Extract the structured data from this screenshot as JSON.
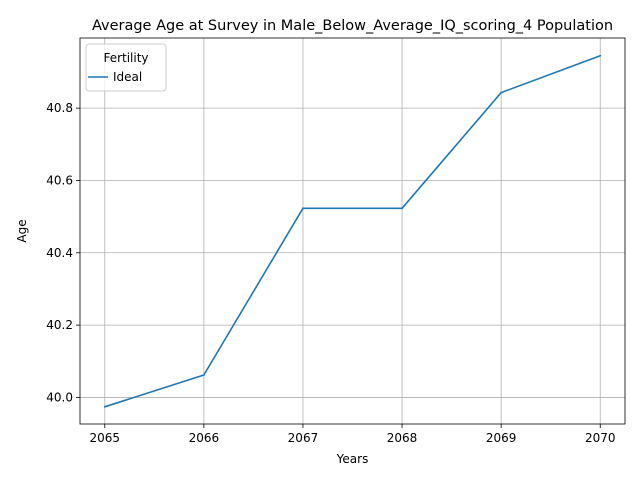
{
  "chart_data": {
    "type": "line",
    "title": "Average Age at Survey in Male_Below_Average_IQ_scoring_4 Population",
    "xlabel": "Years",
    "ylabel": "Age",
    "x": [
      2065,
      2066,
      2067,
      2068,
      2069,
      2070
    ],
    "x_ticks": [
      "2065",
      "2066",
      "2067",
      "2068",
      "2069",
      "2070"
    ],
    "y_ticks": [
      "40.0",
      "40.2",
      "40.4",
      "40.6",
      "40.8"
    ],
    "y_tick_values": [
      40.0,
      40.2,
      40.4,
      40.6,
      40.8
    ],
    "xlim": [
      2064.75,
      2070.25
    ],
    "ylim": [
      39.9265,
      40.994
    ],
    "grid": true,
    "legend": {
      "title": "Fertility",
      "placement": "top-left"
    },
    "series": [
      {
        "name": "Ideal",
        "color": "#1f77b4",
        "values": [
          39.974,
          40.062,
          40.523,
          40.523,
          40.843,
          40.945
        ]
      }
    ]
  }
}
